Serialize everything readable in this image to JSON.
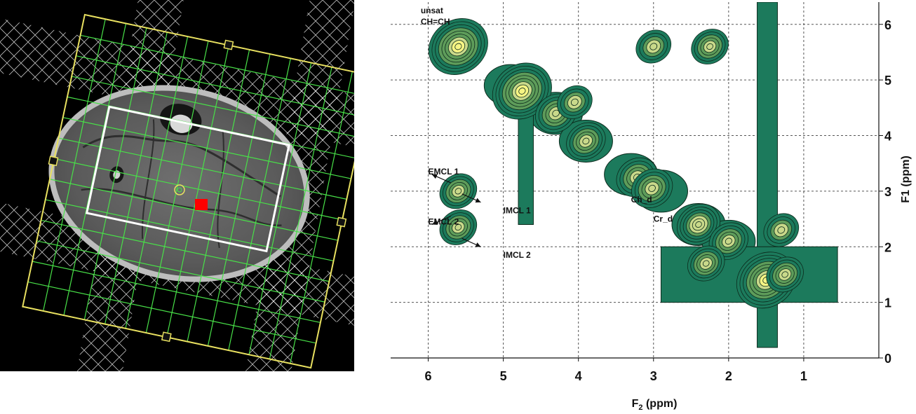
{
  "chart_data": {
    "type": "contour",
    "xlabel_main": "F",
    "xlabel_sub": "2",
    "xlabel_unit": " (ppm)",
    "ylabel": "F1 (ppm)",
    "xlim": [
      6.5,
      0.0
    ],
    "ylim": [
      0,
      6.4
    ],
    "x_reversed": true,
    "y_position": "right",
    "xticks": [
      6,
      5,
      4,
      3,
      2,
      1
    ],
    "yticks": [
      0,
      1,
      2,
      3,
      4,
      5,
      6
    ],
    "grid": true,
    "colors": {
      "contour_outer": "#1c7a5c",
      "contour_mid": "#5e9c5a",
      "contour_inner": "#c9d98a",
      "peak": "#f7f584",
      "line": "#0c2a1c"
    },
    "peaks": [
      {
        "x": 5.6,
        "y": 5.6,
        "h": 1.0
      },
      {
        "x": 4.75,
        "y": 4.8,
        "h": 1.0
      },
      {
        "x": 1.5,
        "y": 1.4,
        "h": 1.0
      },
      {
        "x": 4.3,
        "y": 4.4,
        "h": 0.55
      },
      {
        "x": 4.05,
        "y": 4.6,
        "h": 0.4
      },
      {
        "x": 3.9,
        "y": 3.9,
        "h": 0.5
      },
      {
        "x": 3.0,
        "y": 5.6,
        "h": 0.4
      },
      {
        "x": 2.25,
        "y": 5.6,
        "h": 0.45
      },
      {
        "x": 3.22,
        "y": 3.25,
        "h": 0.55
      },
      {
        "x": 3.02,
        "y": 3.05,
        "h": 0.55
      },
      {
        "x": 2.4,
        "y": 2.4,
        "h": 0.6
      },
      {
        "x": 2.0,
        "y": 2.1,
        "h": 0.5
      },
      {
        "x": 1.3,
        "y": 2.3,
        "h": 0.4
      },
      {
        "x": 2.3,
        "y": 1.7,
        "h": 0.45
      },
      {
        "x": 1.25,
        "y": 1.5,
        "h": 0.45
      },
      {
        "x": 5.6,
        "y": 3.0,
        "h": 0.45
      },
      {
        "x": 5.6,
        "y": 2.35,
        "h": 0.45
      }
    ],
    "annotations": [
      {
        "text": "unsat",
        "x": 6.1,
        "y": 6.2
      },
      {
        "text": "CH=CH",
        "x": 6.1,
        "y": 6.0
      },
      {
        "text": "EMCL 1",
        "x": 6.0,
        "y": 3.3
      },
      {
        "text": "IMCL 1",
        "x": 5.0,
        "y": 2.6
      },
      {
        "text": "EMCL 2",
        "x": 6.0,
        "y": 2.4
      },
      {
        "text": "IMCL 2",
        "x": 5.0,
        "y": 1.8
      },
      {
        "text": "Ch_d",
        "x": 3.3,
        "y": 2.8
      },
      {
        "text": "Cr_d",
        "x": 3.0,
        "y": 2.45
      }
    ],
    "arrows": [
      {
        "from": [
          5.7,
          3.15
        ],
        "to": [
          5.95,
          3.3
        ]
      },
      {
        "from": [
          5.55,
          2.95
        ],
        "to": [
          5.3,
          2.8
        ]
      },
      {
        "from": [
          5.7,
          2.55
        ],
        "to": [
          5.95,
          2.4
        ]
      },
      {
        "from": [
          5.55,
          2.15
        ],
        "to": [
          5.3,
          2.0
        ]
      }
    ]
  },
  "mri": {
    "slab_color": "#ffffff",
    "fov_color": "#e8e060",
    "grid_color": "#48e048",
    "voxel_color": "#ff0000",
    "roi_color": "#ffffff"
  }
}
